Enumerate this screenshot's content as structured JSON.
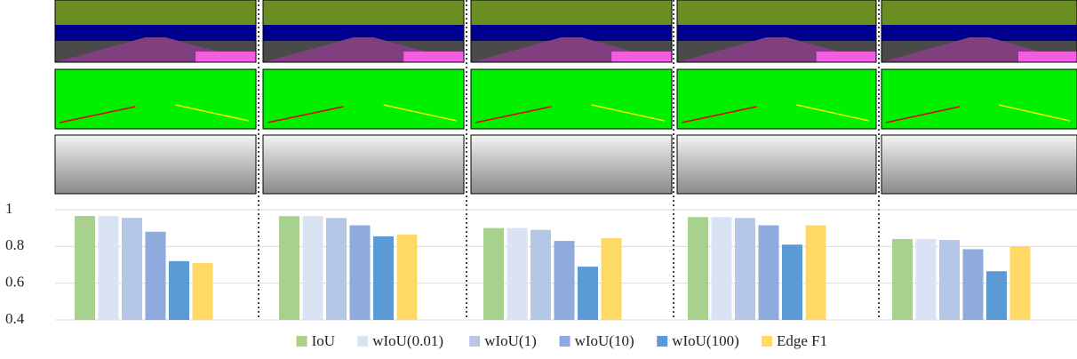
{
  "chart_data": {
    "type": "bar",
    "categories": [
      null,
      null,
      null,
      null,
      null
    ],
    "series": [
      {
        "name": "IoU",
        "color": "#a9d18e",
        "values": [
          0.966,
          0.965,
          0.9,
          0.96,
          0.84
        ]
      },
      {
        "name": "wIoU(0.01)",
        "color": "#dae3f3",
        "values": [
          0.966,
          0.965,
          0.9,
          0.96,
          0.84
        ]
      },
      {
        "name": "wIoU(1)",
        "color": "#b4c7e7",
        "values": [
          0.956,
          0.955,
          0.89,
          0.955,
          0.835
        ]
      },
      {
        "name": "wIoU(10)",
        "color": "#8faadc",
        "values": [
          0.88,
          0.915,
          0.83,
          0.915,
          0.785
        ]
      },
      {
        "name": "wIoU(100)",
        "color": "#5b9bd5",
        "values": [
          0.72,
          0.855,
          0.69,
          0.81,
          0.665
        ]
      },
      {
        "name": "Edge F1",
        "color": "#ffd966",
        "values": [
          0.71,
          0.865,
          0.845,
          0.915,
          0.8
        ]
      }
    ],
    "ylim": [
      0.4,
      1
    ],
    "yticks": [
      0.4,
      0.6,
      0.8,
      1
    ],
    "grid": true,
    "legend": "bottom"
  }
}
